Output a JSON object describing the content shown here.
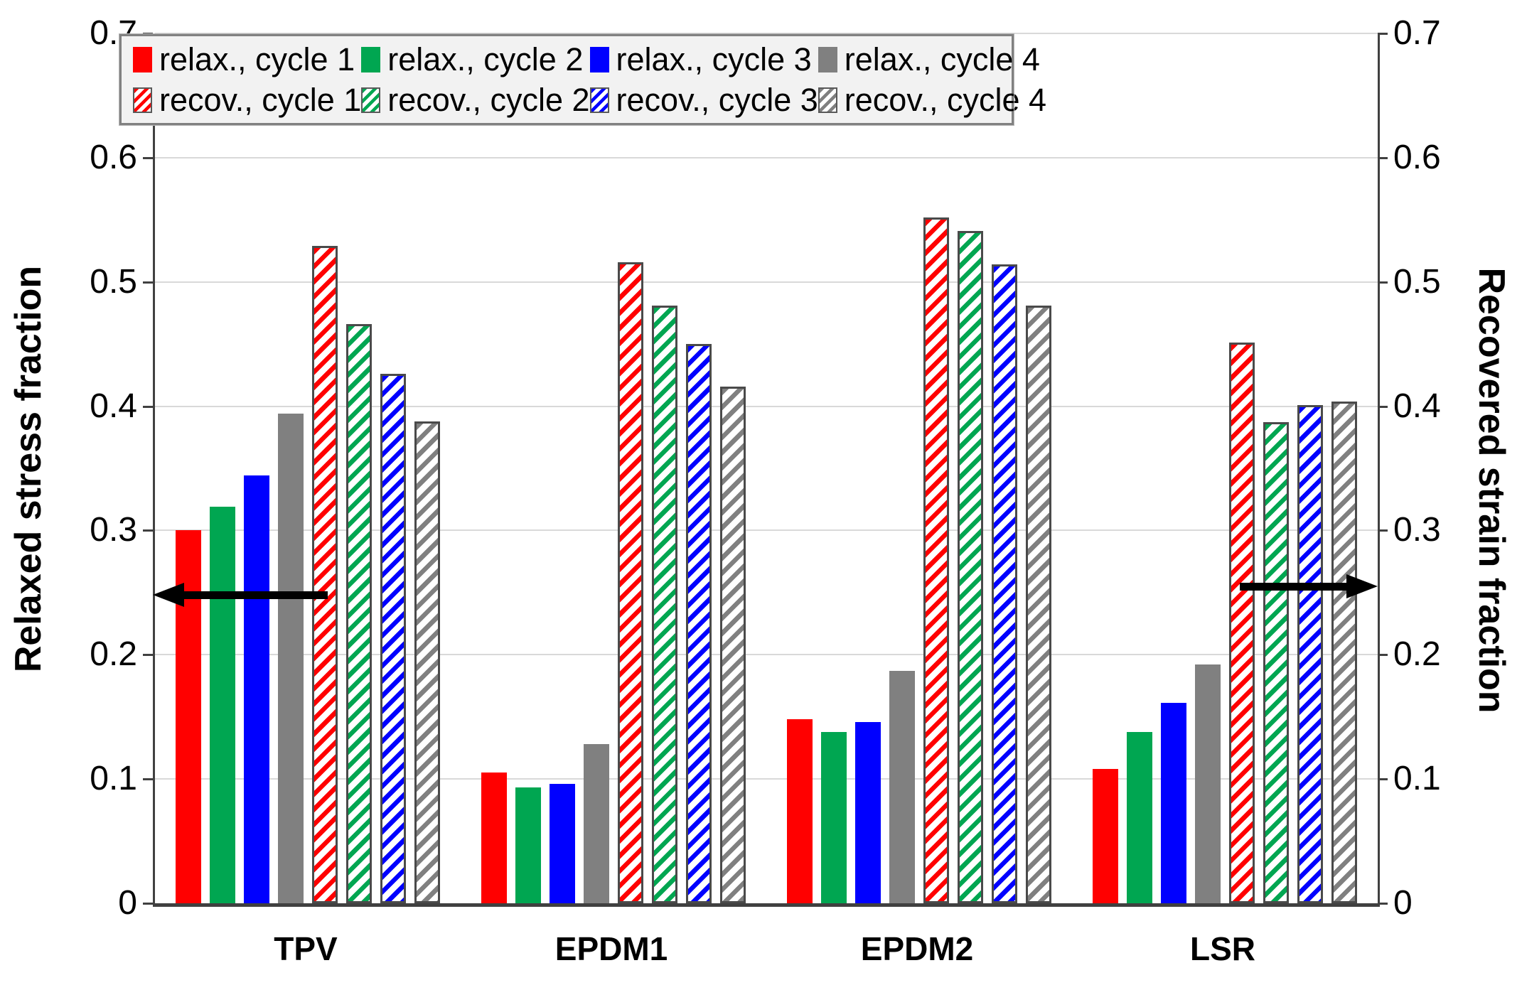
{
  "chart_data": {
    "type": "bar",
    "title": "",
    "categories": [
      "TPV",
      "EPDM1",
      "EPDM2",
      "LSR"
    ],
    "left_axis": {
      "label": "Relaxed stress fraction",
      "min": 0,
      "max": 0.7,
      "tick_values": [
        0,
        0.1,
        0.2,
        0.3,
        0.4,
        0.5,
        0.6,
        0.7
      ],
      "tick_labels": [
        "0",
        "0.1",
        "0.2",
        "0.3",
        "0.4",
        "0.5",
        "0.6",
        "0.7"
      ]
    },
    "right_axis": {
      "label": "Recovered strain fraction",
      "min": 0,
      "max": 0.7,
      "tick_values": [
        0,
        0.1,
        0.2,
        0.3,
        0.4,
        0.5,
        0.6,
        0.7
      ],
      "tick_labels": [
        "0",
        "0.1",
        "0.2",
        "0.3",
        "0.4",
        "0.5",
        "0.6",
        "0.7"
      ]
    },
    "grid": true,
    "legend_position": "top",
    "series": [
      {
        "name": "relax., cycle 1",
        "pattern": "solid",
        "color": "#ff0000",
        "axis": "left",
        "values": [
          0.3,
          0.105,
          0.148,
          0.108
        ]
      },
      {
        "name": "relax., cycle 2",
        "pattern": "solid",
        "color": "#00a651",
        "axis": "left",
        "values": [
          0.319,
          0.093,
          0.138,
          0.138
        ]
      },
      {
        "name": "relax., cycle 3",
        "pattern": "solid",
        "color": "#0000ff",
        "axis": "left",
        "values": [
          0.344,
          0.096,
          0.146,
          0.161
        ]
      },
      {
        "name": "relax., cycle 4",
        "pattern": "solid",
        "color": "#808080",
        "axis": "left",
        "values": [
          0.394,
          0.128,
          0.187,
          0.192
        ]
      },
      {
        "name": "recov., cycle 1",
        "pattern": "hatched",
        "color": "#ff0000",
        "axis": "right",
        "values": [
          0.529,
          0.516,
          0.552,
          0.451
        ]
      },
      {
        "name": "recov., cycle 2",
        "pattern": "hatched",
        "color": "#00a651",
        "axis": "right",
        "values": [
          0.466,
          0.481,
          0.541,
          0.387
        ]
      },
      {
        "name": "recov., cycle 3",
        "pattern": "hatched",
        "color": "#0000ff",
        "axis": "right",
        "values": [
          0.426,
          0.45,
          0.514,
          0.401
        ]
      },
      {
        "name": "recov., cycle 4",
        "pattern": "hatched",
        "color": "#808080",
        "axis": "right",
        "values": [
          0.388,
          0.416,
          0.481,
          0.404
        ]
      }
    ],
    "annotations": {
      "arrows": [
        {
          "direction": "left",
          "points_to": "left axis (relaxed stress fraction applies to solid bars)",
          "at_value": 0.25
        },
        {
          "direction": "right",
          "points_to": "right axis (recovered strain fraction applies to hatched bars)",
          "at_value": 0.25
        }
      ]
    },
    "style": {
      "gridline_color": "#d9d9d9",
      "axis_color": "#404040",
      "hatch_direction": "diagonal /",
      "legend_background": "#f2f2f2"
    }
  }
}
